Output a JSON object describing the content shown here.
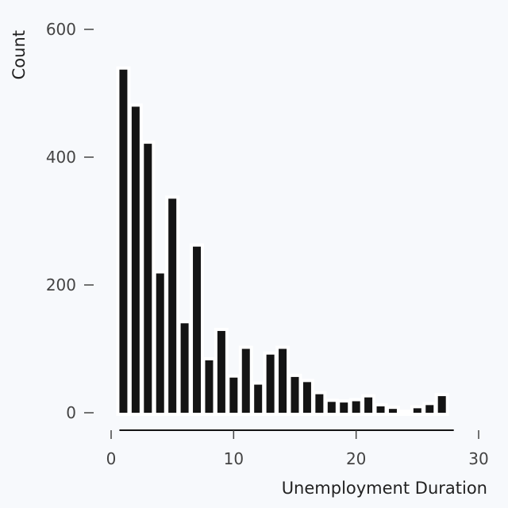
{
  "chart_data": {
    "type": "bar",
    "xlabel": "Unemployment Duration",
    "ylabel": "Count",
    "xlim": [
      0,
      30
    ],
    "ylim": [
      0,
      600
    ],
    "x_ticks": [
      0,
      10,
      20,
      30
    ],
    "y_ticks": [
      0,
      200,
      400,
      600
    ],
    "grid": false,
    "bar_color": "#141414",
    "x": [
      1,
      2,
      3,
      4,
      5,
      6,
      7,
      8,
      9,
      10,
      11,
      12,
      13,
      14,
      15,
      16,
      17,
      18,
      19,
      20,
      21,
      22,
      23,
      24,
      25,
      26,
      27
    ],
    "values": [
      537,
      479,
      421,
      218,
      335,
      140,
      260,
      82,
      128,
      55,
      100,
      44,
      91,
      100,
      56,
      48,
      29,
      17,
      16,
      18,
      24,
      10,
      6,
      0,
      7,
      12,
      26
    ]
  }
}
